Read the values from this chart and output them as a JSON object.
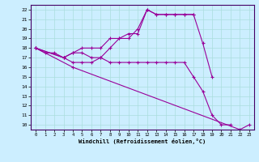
{
  "xlabel": "Windchill (Refroidissement éolien,°C)",
  "bg_color": "#cceeff",
  "grid_color": "#aadddd",
  "line_color": "#990099",
  "xlim": [
    -0.5,
    23.5
  ],
  "ylim": [
    9.5,
    22.5
  ],
  "xticks": [
    0,
    1,
    2,
    3,
    4,
    5,
    6,
    7,
    8,
    9,
    10,
    11,
    12,
    13,
    14,
    15,
    16,
    17,
    18,
    19,
    20,
    21,
    22,
    23
  ],
  "yticks": [
    10,
    11,
    12,
    13,
    14,
    15,
    16,
    17,
    18,
    19,
    20,
    21,
    22
  ],
  "lines": [
    {
      "x": [
        0,
        1,
        2,
        3,
        4,
        5,
        6,
        7,
        8,
        9,
        10,
        11,
        12,
        13,
        14,
        15,
        16,
        17,
        18,
        19
      ],
      "y": [
        18,
        17.5,
        17.5,
        17,
        17.5,
        18,
        18,
        18,
        19,
        19,
        19.5,
        19.5,
        22,
        21.5,
        21.5,
        21.5,
        21.5,
        21.5,
        18.5,
        15
      ]
    },
    {
      "x": [
        0,
        3,
        4,
        5,
        6,
        7,
        8,
        9,
        10,
        11,
        12,
        13,
        14,
        15,
        16,
        17
      ],
      "y": [
        18,
        17,
        17.5,
        17.5,
        17,
        17,
        18,
        19,
        19,
        20,
        22,
        21.5,
        21.5,
        21.5,
        21.5,
        21.5
      ]
    },
    {
      "x": [
        0,
        3,
        4,
        5,
        6,
        7,
        8,
        9,
        10,
        11,
        12,
        13,
        14,
        15,
        16,
        17,
        18,
        19,
        20,
        21
      ],
      "y": [
        18,
        17,
        16.5,
        16.5,
        16.5,
        17,
        16.5,
        16.5,
        16.5,
        16.5,
        16.5,
        16.5,
        16.5,
        16.5,
        16.5,
        15,
        13.5,
        11,
        10,
        10
      ]
    },
    {
      "x": [
        0,
        4,
        22,
        23
      ],
      "y": [
        18,
        16,
        9.5,
        10
      ]
    }
  ]
}
